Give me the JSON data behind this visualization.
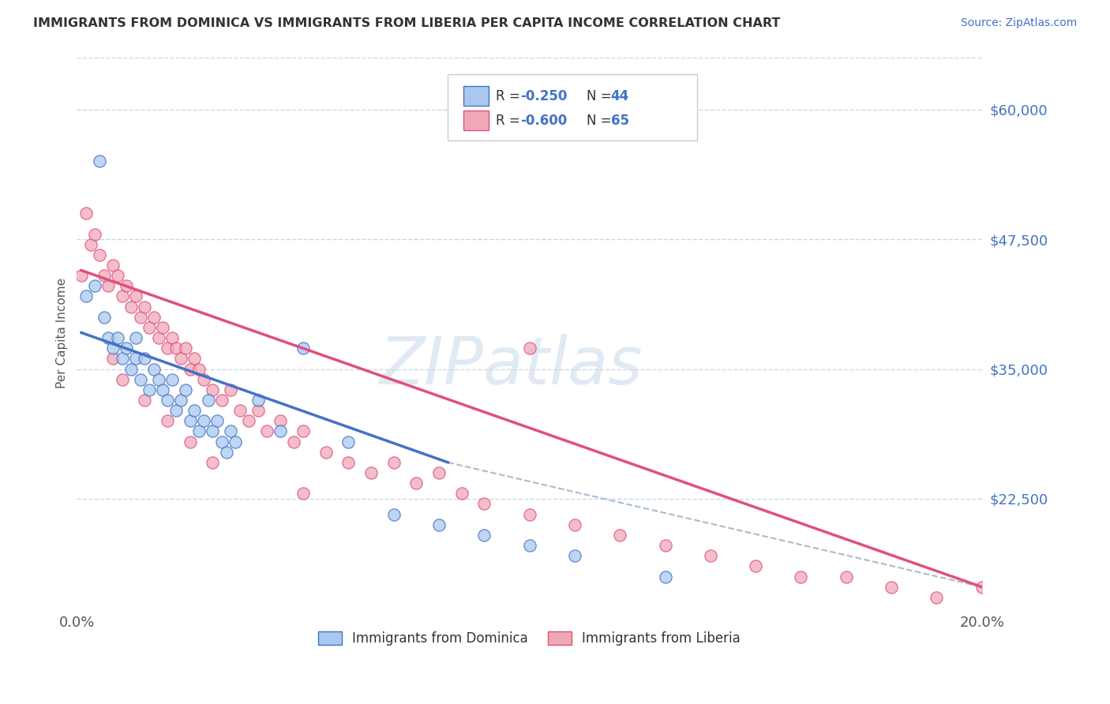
{
  "title": "IMMIGRANTS FROM DOMINICA VS IMMIGRANTS FROM LIBERIA PER CAPITA INCOME CORRELATION CHART",
  "source_text": "Source: ZipAtlas.com",
  "ylabel": "Per Capita Income",
  "xlim": [
    0.0,
    0.2
  ],
  "ylim": [
    12000,
    65000
  ],
  "yticks": [
    22500,
    35000,
    47500,
    60000
  ],
  "ytick_labels": [
    "$22,500",
    "$35,000",
    "$47,500",
    "$60,000"
  ],
  "xticks": [
    0.0,
    0.04,
    0.08,
    0.12,
    0.16,
    0.2
  ],
  "xtick_labels": [
    "0.0%",
    "",
    "",
    "",
    "",
    "20.0%"
  ],
  "watermark": "ZIPatlas",
  "color_dominica": "#a8c8f0",
  "color_liberia": "#f0a8b8",
  "line_color_dominica": "#4472c4",
  "line_color_liberia": "#e0507a",
  "line_color_dashed": "#aabbd0",
  "background_color": "#ffffff",
  "grid_color": "#c8d8e8",
  "dominica_x": [
    0.002,
    0.004,
    0.005,
    0.006,
    0.007,
    0.008,
    0.009,
    0.01,
    0.011,
    0.012,
    0.013,
    0.013,
    0.014,
    0.015,
    0.016,
    0.017,
    0.018,
    0.019,
    0.02,
    0.021,
    0.022,
    0.023,
    0.024,
    0.025,
    0.026,
    0.027,
    0.028,
    0.029,
    0.03,
    0.031,
    0.032,
    0.033,
    0.034,
    0.035,
    0.04,
    0.045,
    0.05,
    0.06,
    0.07,
    0.08,
    0.09,
    0.1,
    0.11,
    0.13
  ],
  "dominica_y": [
    42000,
    43000,
    55000,
    40000,
    38000,
    37000,
    38000,
    36000,
    37000,
    35000,
    38000,
    36000,
    34000,
    36000,
    33000,
    35000,
    34000,
    33000,
    32000,
    34000,
    31000,
    32000,
    33000,
    30000,
    31000,
    29000,
    30000,
    32000,
    29000,
    30000,
    28000,
    27000,
    29000,
    28000,
    32000,
    29000,
    37000,
    28000,
    21000,
    20000,
    19000,
    18000,
    17000,
    15000
  ],
  "liberia_x": [
    0.001,
    0.002,
    0.003,
    0.004,
    0.005,
    0.006,
    0.007,
    0.008,
    0.009,
    0.01,
    0.011,
    0.012,
    0.013,
    0.014,
    0.015,
    0.016,
    0.017,
    0.018,
    0.019,
    0.02,
    0.021,
    0.022,
    0.023,
    0.024,
    0.025,
    0.026,
    0.027,
    0.028,
    0.03,
    0.032,
    0.034,
    0.036,
    0.038,
    0.04,
    0.042,
    0.045,
    0.048,
    0.05,
    0.055,
    0.06,
    0.065,
    0.07,
    0.075,
    0.08,
    0.085,
    0.09,
    0.1,
    0.11,
    0.12,
    0.13,
    0.14,
    0.15,
    0.16,
    0.17,
    0.18,
    0.19,
    0.2,
    0.008,
    0.01,
    0.015,
    0.02,
    0.025,
    0.03,
    0.05,
    0.1
  ],
  "liberia_y": [
    44000,
    50000,
    47000,
    48000,
    46000,
    44000,
    43000,
    45000,
    44000,
    42000,
    43000,
    41000,
    42000,
    40000,
    41000,
    39000,
    40000,
    38000,
    39000,
    37000,
    38000,
    37000,
    36000,
    37000,
    35000,
    36000,
    35000,
    34000,
    33000,
    32000,
    33000,
    31000,
    30000,
    31000,
    29000,
    30000,
    28000,
    29000,
    27000,
    26000,
    25000,
    26000,
    24000,
    25000,
    23000,
    22000,
    21000,
    20000,
    19000,
    18000,
    17000,
    16000,
    15000,
    15000,
    14000,
    13000,
    14000,
    36000,
    34000,
    32000,
    30000,
    28000,
    26000,
    23000,
    37000
  ],
  "dom_line_x": [
    0.001,
    0.082
  ],
  "dom_line_y": [
    38500,
    26000
  ],
  "lib_line_x": [
    0.001,
    0.2
  ],
  "lib_line_y": [
    44500,
    14000
  ],
  "dash_line_x": [
    0.082,
    0.2
  ],
  "dash_line_y": [
    26000,
    14000
  ]
}
